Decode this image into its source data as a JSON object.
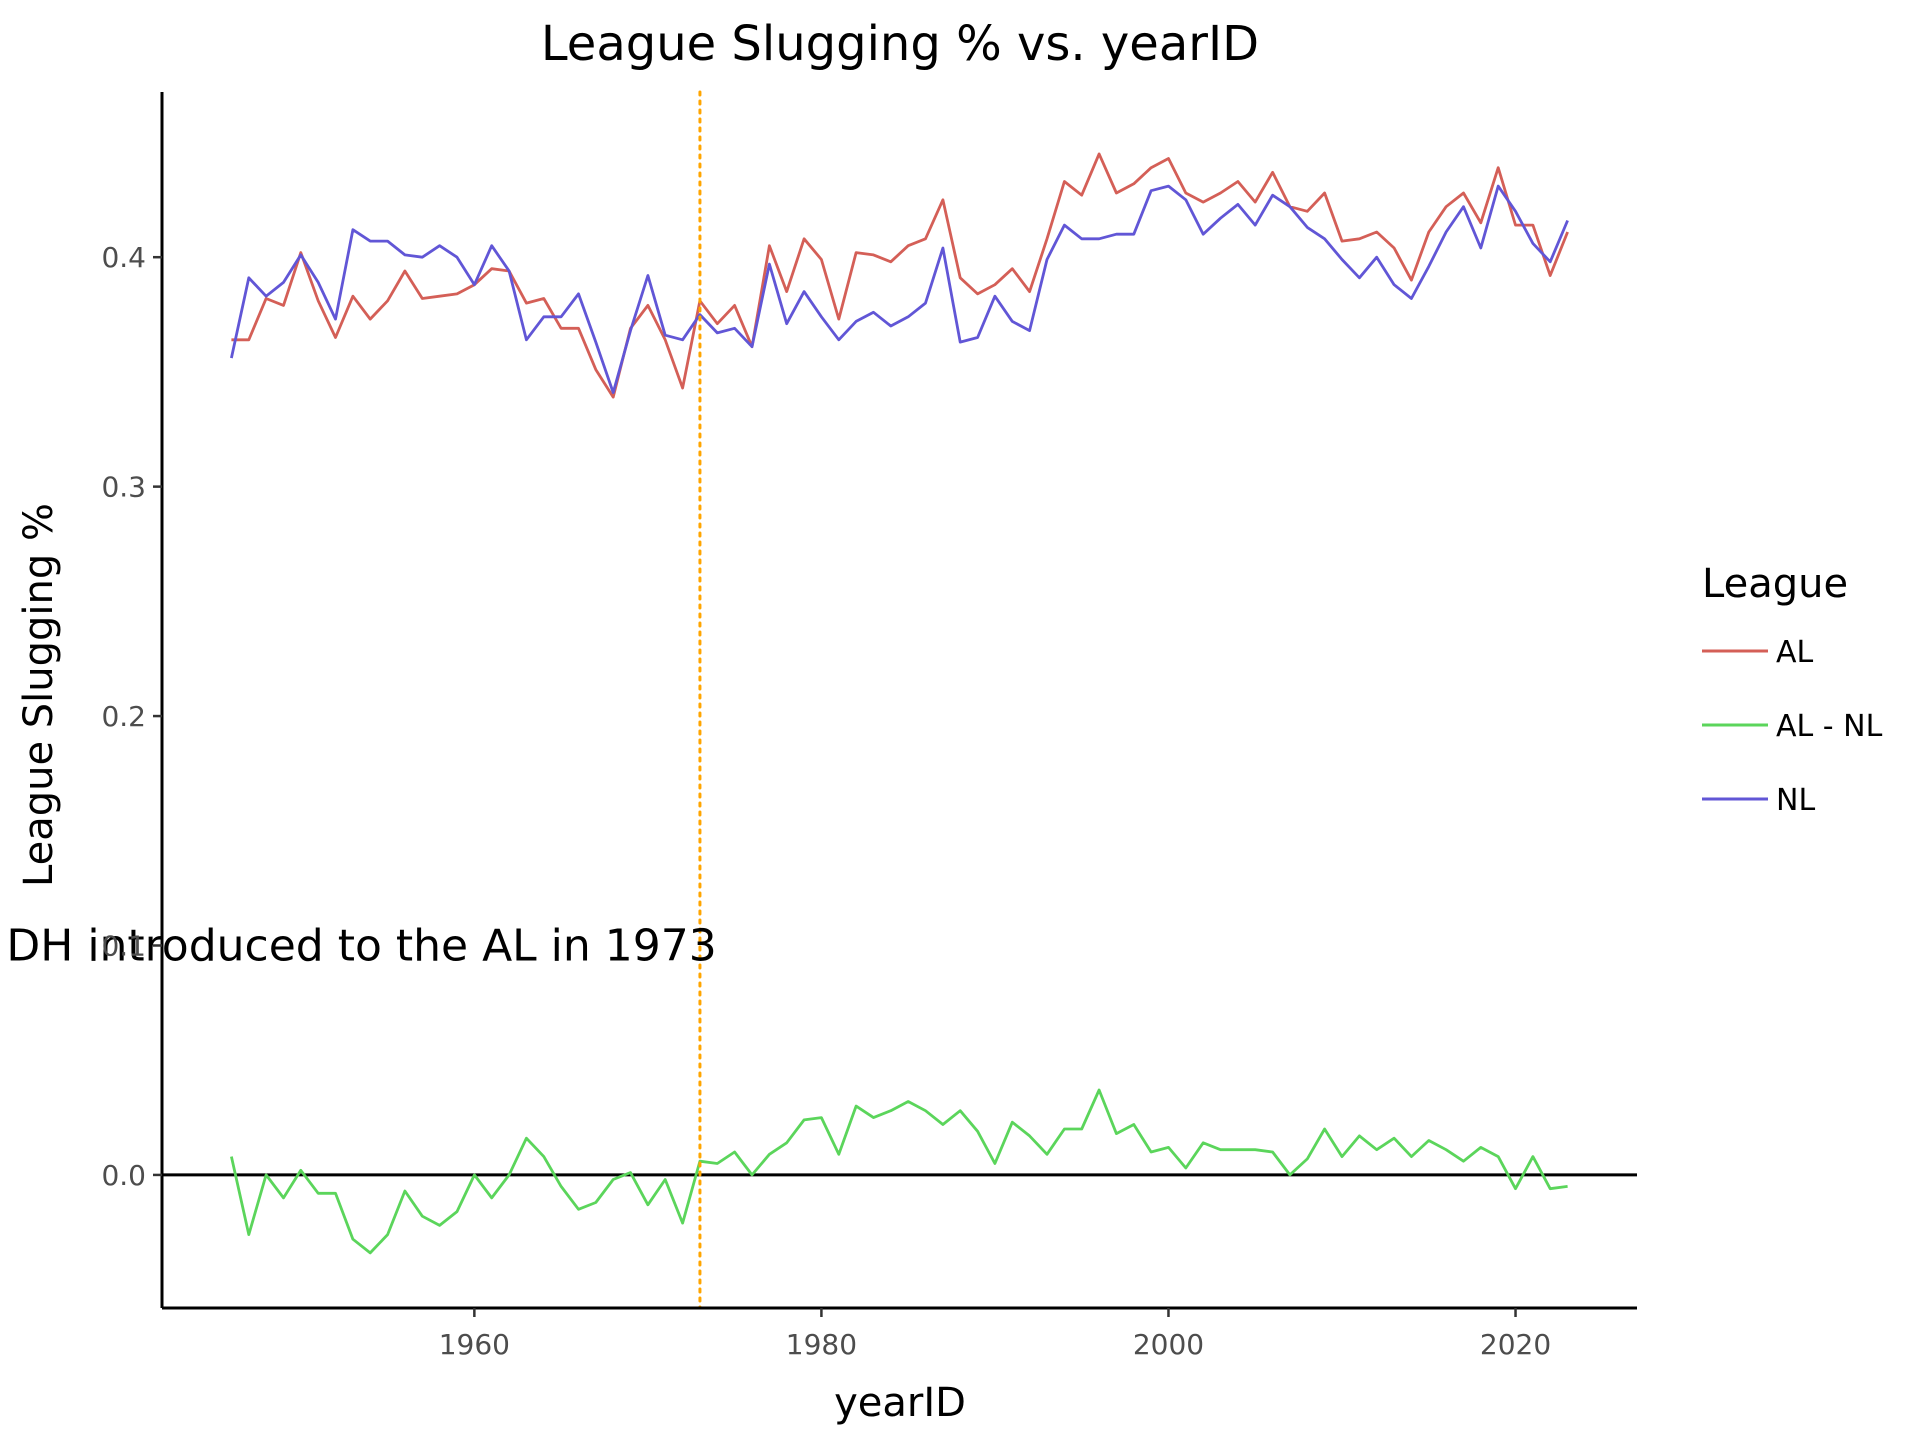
{
  "chart_data": {
    "type": "line",
    "title": "League Slugging % vs. yearID",
    "xlabel": "yearID",
    "ylabel": "League Slugging %",
    "xlim": [
      1942,
      2027
    ],
    "ylim": [
      -0.058,
      0.472
    ],
    "x_ticks": [
      1960,
      1980,
      2000,
      2020
    ],
    "x_tick_labels": [
      "1960",
      "1980",
      "2000",
      "2020"
    ],
    "y_ticks": [
      0.0,
      0.1,
      0.2,
      0.3,
      0.4
    ],
    "y_tick_labels": [
      "0.0",
      "0.1",
      "0.2",
      "0.3",
      "0.4"
    ],
    "grid": false,
    "legend": {
      "title": "League",
      "position": "right"
    },
    "reference_lines": [
      {
        "axis": "x",
        "value": 1973,
        "style": "dotted",
        "color": "#FFA500"
      },
      {
        "axis": "y",
        "value": 0.0,
        "style": "solid",
        "color": "#000000"
      }
    ],
    "annotation": {
      "text": "DH introduced to the AL in 1973",
      "x": 1953.5,
      "y": 0.1
    },
    "x": [
      1946,
      1947,
      1948,
      1949,
      1950,
      1951,
      1952,
      1953,
      1954,
      1955,
      1956,
      1957,
      1958,
      1959,
      1960,
      1961,
      1962,
      1963,
      1964,
      1965,
      1966,
      1967,
      1968,
      1969,
      1970,
      1971,
      1972,
      1973,
      1974,
      1975,
      1976,
      1977,
      1978,
      1979,
      1980,
      1981,
      1982,
      1983,
      1984,
      1985,
      1986,
      1987,
      1988,
      1989,
      1990,
      1991,
      1992,
      1993,
      1994,
      1995,
      1996,
      1997,
      1998,
      1999,
      2000,
      2001,
      2002,
      2003,
      2004,
      2005,
      2006,
      2007,
      2008,
      2009,
      2010,
      2011,
      2012,
      2013,
      2014,
      2015,
      2016,
      2017,
      2018,
      2019,
      2020,
      2021,
      2022,
      2023
    ],
    "series": [
      {
        "name": "AL",
        "color": "#D45F57",
        "values": [
          0.364,
          0.364,
          0.382,
          0.379,
          0.402,
          0.381,
          0.365,
          0.383,
          0.373,
          0.381,
          0.394,
          0.382,
          0.383,
          0.384,
          0.388,
          0.395,
          0.394,
          0.38,
          0.382,
          0.369,
          0.369,
          0.351,
          0.339,
          0.369,
          0.379,
          0.364,
          0.343,
          0.381,
          0.371,
          0.379,
          0.361,
          0.405,
          0.385,
          0.408,
          0.399,
          0.373,
          0.402,
          0.401,
          0.398,
          0.405,
          0.408,
          0.425,
          0.391,
          0.384,
          0.388,
          0.395,
          0.385,
          0.408,
          0.433,
          0.427,
          0.445,
          0.428,
          0.432,
          0.439,
          0.443,
          0.428,
          0.424,
          0.428,
          0.433,
          0.424,
          0.437,
          0.422,
          0.42,
          0.428,
          0.407,
          0.408,
          0.411,
          0.404,
          0.39,
          0.411,
          0.422,
          0.428,
          0.415,
          0.439,
          0.414,
          0.414,
          0.392,
          0.411
        ]
      },
      {
        "name": "AL - NL",
        "color": "#5BD55B",
        "values": [
          0.008,
          -0.026,
          0.0,
          -0.01,
          0.002,
          -0.008,
          -0.008,
          -0.028,
          -0.034,
          -0.026,
          -0.007,
          -0.018,
          -0.022,
          -0.016,
          0.0,
          -0.01,
          0.0,
          0.016,
          0.008,
          -0.005,
          -0.015,
          -0.012,
          -0.002,
          0.001,
          -0.013,
          -0.002,
          -0.021,
          0.006,
          0.005,
          0.01,
          0.0,
          0.009,
          0.014,
          0.024,
          0.025,
          0.009,
          0.03,
          0.025,
          0.028,
          0.032,
          0.028,
          0.022,
          0.028,
          0.019,
          0.005,
          0.023,
          0.017,
          0.009,
          0.02,
          0.02,
          0.037,
          0.018,
          0.022,
          0.01,
          0.012,
          0.003,
          0.014,
          0.011,
          0.011,
          0.011,
          0.01,
          0.0,
          0.007,
          0.02,
          0.008,
          0.017,
          0.011,
          0.016,
          0.008,
          0.015,
          0.011,
          0.006,
          0.012,
          0.008,
          -0.006,
          0.008,
          -0.006,
          -0.005
        ]
      },
      {
        "name": "NL",
        "color": "#6156D6",
        "values": [
          0.356,
          0.391,
          0.383,
          0.389,
          0.401,
          0.389,
          0.373,
          0.412,
          0.407,
          0.407,
          0.401,
          0.4,
          0.405,
          0.4,
          0.388,
          0.405,
          0.394,
          0.364,
          0.374,
          0.374,
          0.384,
          0.363,
          0.341,
          0.368,
          0.392,
          0.366,
          0.364,
          0.375,
          0.367,
          0.369,
          0.361,
          0.397,
          0.371,
          0.385,
          0.374,
          0.364,
          0.372,
          0.376,
          0.37,
          0.374,
          0.38,
          0.404,
          0.363,
          0.365,
          0.383,
          0.372,
          0.368,
          0.399,
          0.414,
          0.408,
          0.408,
          0.41,
          0.41,
          0.429,
          0.431,
          0.425,
          0.41,
          0.417,
          0.423,
          0.414,
          0.427,
          0.422,
          0.413,
          0.408,
          0.399,
          0.391,
          0.4,
          0.388,
          0.382,
          0.396,
          0.411,
          0.422,
          0.404,
          0.431,
          0.42,
          0.406,
          0.398,
          0.416
        ]
      }
    ]
  }
}
